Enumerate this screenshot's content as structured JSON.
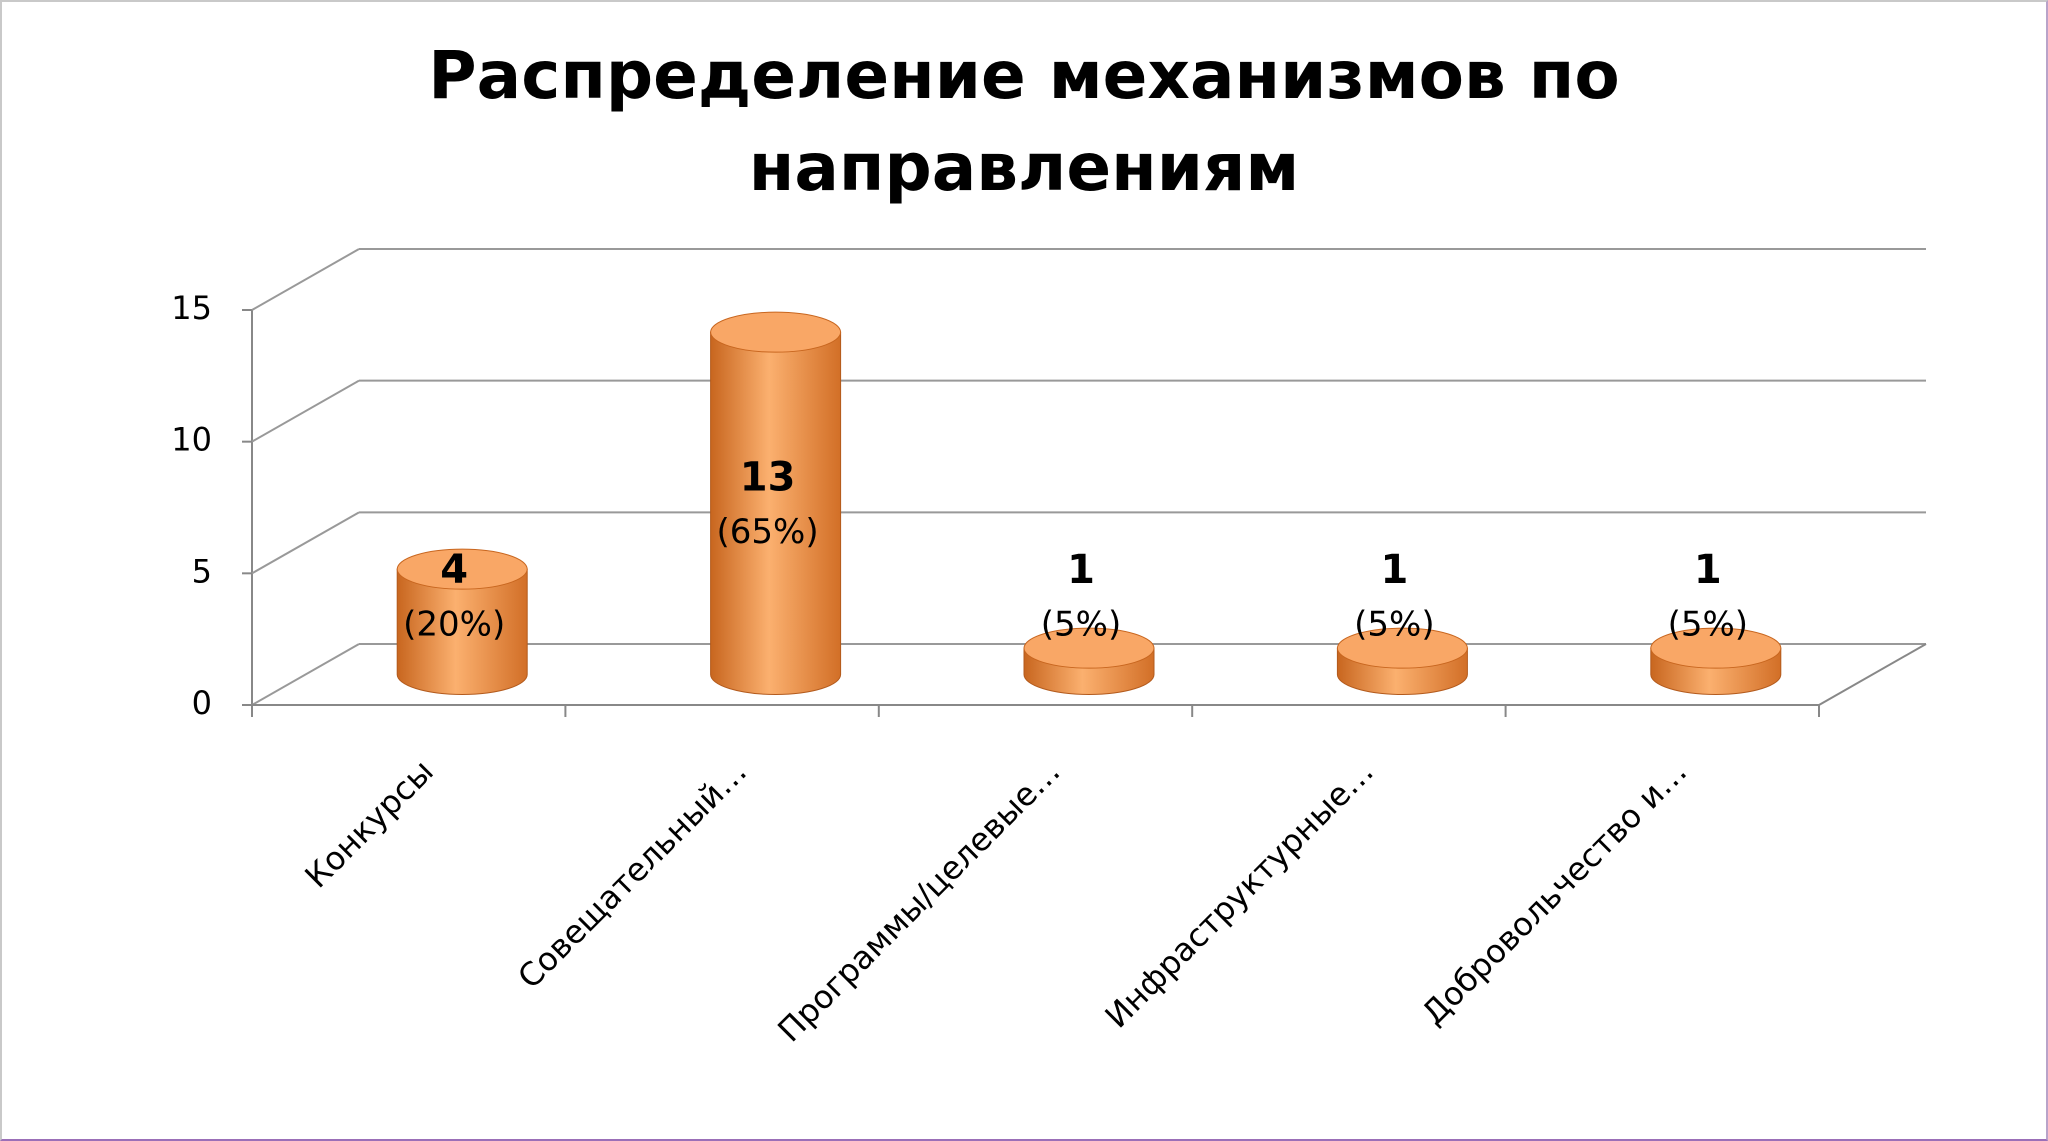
{
  "chart_data": {
    "type": "bar3d",
    "title": "Распределение механизмов по направлениям",
    "categories": [
      "Конкурсы",
      "Совещательный…",
      "Программы/целевые…",
      "Инфраструктурные…",
      "Добровольчество и…"
    ],
    "values": [
      4,
      13,
      1,
      1,
      1
    ],
    "share_labels": [
      "(20%)",
      "(65%)",
      "(5%)",
      "(5%)",
      "(5%)"
    ],
    "color": "#f79646",
    "ylim": [
      0,
      15
    ],
    "yticks": [
      0,
      5,
      10,
      15
    ],
    "grid": true
  }
}
